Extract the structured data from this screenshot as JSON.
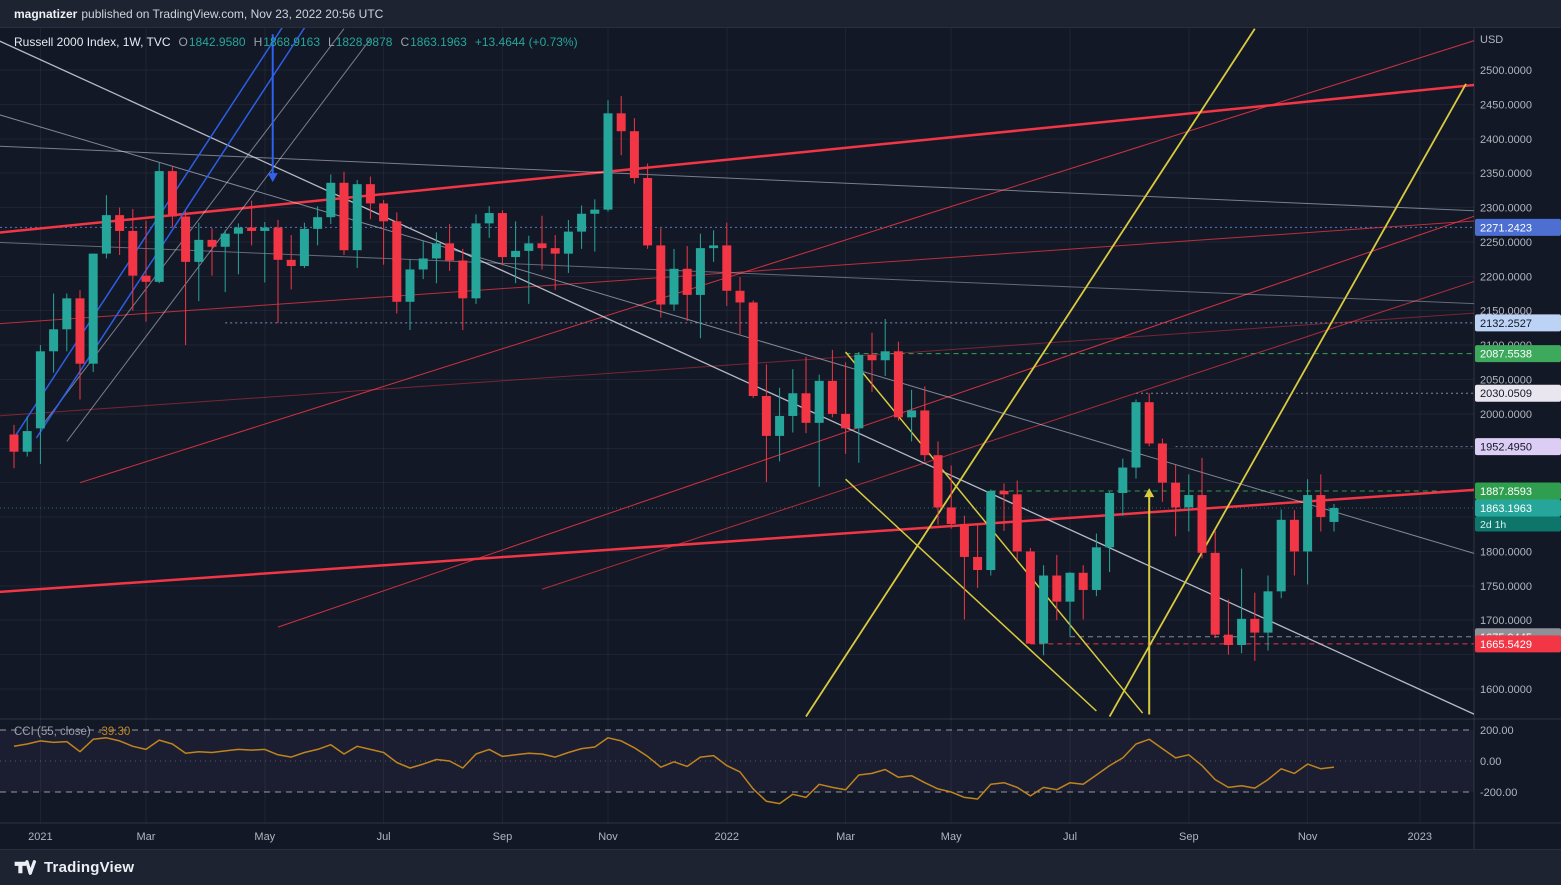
{
  "topbar": {
    "publisher": "magnatizer",
    "rest": "published on TradingView.com, Nov 23, 2022 20:56 UTC"
  },
  "legend": {
    "symbol": "Russell 2000 Index, 1W, TVC",
    "o_label": "O",
    "o": "1842.9580",
    "h_label": "H",
    "h": "1868.9163",
    "l_label": "L",
    "l": "1828.9878",
    "c_label": "C",
    "c": "1863.1963",
    "change": "+13.4644 (+0.73%)"
  },
  "footer": {
    "brand": "TradingView"
  },
  "colors": {
    "bg": "#131826",
    "bar": "#1d2331",
    "up": "#26a69a",
    "down": "#f23645",
    "cci_line": "#c0841f",
    "axis_text": "#b2b5be",
    "grid": "rgba(255,255,255,0.05)",
    "separator": "rgba(255,255,255,0.12)",
    "countdown_bg": "#0e756b",
    "yellow": "#d9cb3f",
    "blue": "#2e62f0",
    "white_line": "#dce3ef"
  },
  "chart_data": {
    "type": "candlestick",
    "symbol": "Russell 2000 Index",
    "interval": "1W",
    "exchange": "TVC",
    "currency": "USD",
    "start_week": "2020-12-21",
    "price_range_shown": [
      1560,
      2560
    ],
    "price_ticks": [
      2500,
      2450,
      2400,
      2350,
      2300,
      2250,
      2200,
      2150,
      2100,
      2050,
      2000,
      1800,
      1750,
      1700,
      1600
    ],
    "time_labels": [
      {
        "text": "2021",
        "index": 2
      },
      {
        "text": "Mar",
        "index": 10
      },
      {
        "text": "May",
        "index": 19
      },
      {
        "text": "Jul",
        "index": 28
      },
      {
        "text": "Sep",
        "index": 37
      },
      {
        "text": "Nov",
        "index": 45
      },
      {
        "text": "2022",
        "index": 54
      },
      {
        "text": "Mar",
        "index": 63
      },
      {
        "text": "May",
        "index": 71
      },
      {
        "text": "Jul",
        "index": 80
      },
      {
        "text": "Sep",
        "index": 89
      },
      {
        "text": "Nov",
        "index": 98
      },
      {
        "text": "2023",
        "index": 106.5
      }
    ],
    "ohlc": [
      [
        1970,
        1984,
        1921,
        1945
      ],
      [
        1945,
        1996,
        1938,
        1975
      ],
      [
        1979,
        2100,
        1927,
        2091
      ],
      [
        2091,
        2175,
        2060,
        2123
      ],
      [
        2123,
        2175,
        2091,
        2168
      ],
      [
        2168,
        2180,
        2021,
        2073
      ],
      [
        2073,
        2233,
        2061,
        2233
      ],
      [
        2233,
        2318,
        2226,
        2289
      ],
      [
        2289,
        2300,
        2231,
        2266
      ],
      [
        2266,
        2298,
        2150,
        2201
      ],
      [
        2201,
        2281,
        2134,
        2192
      ],
      [
        2192,
        2365,
        2190,
        2353
      ],
      [
        2353,
        2360,
        2271,
        2287
      ],
      [
        2287,
        2295,
        2100,
        2221
      ],
      [
        2221,
        2278,
        2164,
        2253
      ],
      [
        2253,
        2270,
        2201,
        2243
      ],
      [
        2243,
        2267,
        2177,
        2262
      ],
      [
        2262,
        2277,
        2203,
        2271
      ],
      [
        2271,
        2310,
        2245,
        2266
      ],
      [
        2266,
        2279,
        2191,
        2271
      ],
      [
        2271,
        2282,
        2132,
        2224
      ],
      [
        2224,
        2260,
        2181,
        2215
      ],
      [
        2215,
        2278,
        2212,
        2269
      ],
      [
        2269,
        2302,
        2245,
        2286
      ],
      [
        2286,
        2348,
        2276,
        2336
      ],
      [
        2336,
        2352,
        2231,
        2238
      ],
      [
        2238,
        2340,
        2212,
        2334
      ],
      [
        2334,
        2345,
        2283,
        2306
      ],
      [
        2306,
        2311,
        2217,
        2280
      ],
      [
        2280,
        2293,
        2146,
        2163
      ],
      [
        2163,
        2225,
        2122,
        2210
      ],
      [
        2210,
        2252,
        2196,
        2226
      ],
      [
        2226,
        2264,
        2190,
        2248
      ],
      [
        2248,
        2276,
        2208,
        2223
      ],
      [
        2223,
        2240,
        2122,
        2168
      ],
      [
        2168,
        2290,
        2160,
        2277
      ],
      [
        2277,
        2302,
        2256,
        2292
      ],
      [
        2292,
        2296,
        2216,
        2228
      ],
      [
        2228,
        2280,
        2190,
        2237
      ],
      [
        2237,
        2259,
        2160,
        2248
      ],
      [
        2248,
        2288,
        2210,
        2241
      ],
      [
        2241,
        2260,
        2180,
        2233
      ],
      [
        2233,
        2282,
        2205,
        2265
      ],
      [
        2265,
        2303,
        2240,
        2291
      ],
      [
        2291,
        2312,
        2236,
        2297
      ],
      [
        2297,
        2456,
        2294,
        2437
      ],
      [
        2437,
        2462,
        2376,
        2411
      ],
      [
        2411,
        2430,
        2335,
        2343
      ],
      [
        2343,
        2364,
        2240,
        2245
      ],
      [
        2245,
        2270,
        2140,
        2159
      ],
      [
        2159,
        2240,
        2150,
        2211
      ],
      [
        2211,
        2244,
        2135,
        2173
      ],
      [
        2173,
        2262,
        2110,
        2241
      ],
      [
        2241,
        2267,
        2221,
        2245
      ],
      [
        2245,
        2278,
        2157,
        2179
      ],
      [
        2179,
        2199,
        2116,
        2162
      ],
      [
        2162,
        2165,
        2023,
        2026
      ],
      [
        2026,
        2072,
        1901,
        1968
      ],
      [
        1968,
        2038,
        1931,
        1997
      ],
      [
        1997,
        2065,
        1973,
        2030
      ],
      [
        2030,
        2083,
        1972,
        1987
      ],
      [
        1987,
        2057,
        1894,
        2048
      ],
      [
        2048,
        2093,
        1995,
        2000
      ],
      [
        2000,
        2075,
        1942,
        1979
      ],
      [
        1979,
        2090,
        1929,
        2086
      ],
      [
        2086,
        2118,
        2032,
        2078
      ],
      [
        2078,
        2138,
        2055,
        2091
      ],
      [
        2091,
        2105,
        1990,
        1995
      ],
      [
        1995,
        2035,
        1960,
        2005
      ],
      [
        2005,
        2040,
        1931,
        1940
      ],
      [
        1940,
        1960,
        1839,
        1864
      ],
      [
        1864,
        1925,
        1833,
        1840
      ],
      [
        1840,
        1852,
        1701,
        1792
      ],
      [
        1792,
        1841,
        1747,
        1773
      ],
      [
        1773,
        1890,
        1765,
        1888
      ],
      [
        1888,
        1899,
        1830,
        1883
      ],
      [
        1883,
        1903,
        1788,
        1800
      ],
      [
        1800,
        1805,
        1665.54,
        1666
      ],
      [
        1666,
        1780,
        1649,
        1765
      ],
      [
        1765,
        1795,
        1700,
        1727
      ],
      [
        1727,
        1770,
        1675.94,
        1769
      ],
      [
        1769,
        1780,
        1701,
        1744
      ],
      [
        1744,
        1826,
        1735,
        1806
      ],
      [
        1806,
        1887,
        1770,
        1885
      ],
      [
        1885,
        1935,
        1852,
        1922
      ],
      [
        1922,
        2021,
        1906,
        2017
      ],
      [
        2017,
        2030.05,
        1953,
        1957
      ],
      [
        1957,
        1964,
        1872,
        1900
      ],
      [
        1900,
        1926,
        1822,
        1864
      ],
      [
        1864,
        1912,
        1829,
        1882
      ],
      [
        1882,
        1936,
        1790,
        1798
      ],
      [
        1798,
        1830,
        1674,
        1679
      ],
      [
        1679,
        1730,
        1650,
        1664
      ],
      [
        1664,
        1775,
        1652,
        1702
      ],
      [
        1702,
        1740,
        1641,
        1682
      ],
      [
        1682,
        1765,
        1656,
        1742
      ],
      [
        1742,
        1861,
        1732,
        1846
      ],
      [
        1846,
        1860,
        1765,
        1800
      ],
      [
        1800,
        1905,
        1752,
        1882
      ],
      [
        1882,
        1912,
        1829,
        1850
      ],
      [
        1842.958,
        1868.9163,
        1828.9878,
        1863.1963
      ]
    ],
    "last": {
      "price": 1863.1963,
      "value": "1863.1963",
      "countdown": "2d 1h"
    },
    "levels": [
      {
        "value": "2271.2423",
        "price": 2271.2423,
        "bg": "#4c6fd1",
        "fg": "#ffffff",
        "line_color": "rgba(110,143,240,0.8)",
        "line_dash": "2 3",
        "line_from": -2
      },
      {
        "value": "2132.2527",
        "price": 2132.2527,
        "bg": "#bcd3f5",
        "fg": "#131826",
        "line_color": "rgba(176,205,244,0.7)",
        "line_dash": "2 3",
        "line_from": 16
      },
      {
        "value": "2087.5538",
        "price": 2087.5538,
        "bg": "#3da95c",
        "fg": "#ffffff",
        "line_color": "#3da95c",
        "line_dash": "5 4",
        "line_from": 63
      },
      {
        "value": "2030.0509",
        "price": 2030.0509,
        "bg": "#e9e6f0",
        "fg": "#131826",
        "line_color": "rgba(222,216,236,0.6)",
        "line_dash": "2 3",
        "line_from": 85
      },
      {
        "value": "1952.4950",
        "price": 1952.495,
        "bg": "#dccdf4",
        "fg": "#131826",
        "line_color": "rgba(205,183,238,0.6)",
        "line_dash": "2 3",
        "line_from": 88
      },
      {
        "value": "1887.8593",
        "price": 1887.8593,
        "bg": "#2f9e4f",
        "fg": "#ffffff",
        "line_color": "#2f9e4f",
        "line_dash": "5 4",
        "line_from": 74
      },
      {
        "value": "1675.9445",
        "price": 1675.9445,
        "bg": "#8d9098",
        "fg": "#ffffff",
        "line_color": "#8d9098",
        "line_dash": "5 4",
        "line_from": 80
      },
      {
        "value": "1665.5429",
        "price": 1665.5429,
        "bg": "#f23645",
        "fg": "#ffffff",
        "line_color": "#f23645",
        "line_dash": "5 4",
        "line_from": 77
      }
    ],
    "trendlines": [
      {
        "name": "red-channel-upper-thick",
        "color": "#f23645",
        "width": 2.5,
        "opacity": 1,
        "p1": [
          -2,
          2262
        ],
        "p2": [
          111,
          2479
        ]
      },
      {
        "name": "red-channel-lower-thick",
        "color": "#f23645",
        "width": 2.5,
        "opacity": 1,
        "p1": [
          -2,
          1740
        ],
        "p2": [
          111,
          1890
        ]
      },
      {
        "name": "red-parallel-mid",
        "color": "#f23645",
        "width": 1,
        "opacity": 0.75,
        "p1": [
          -2,
          2130
        ],
        "p2": [
          111,
          2281
        ]
      },
      {
        "name": "red-parallel-low",
        "color": "#f23645",
        "width": 1,
        "opacity": 0.45,
        "p1": [
          -2,
          1996
        ],
        "p2": [
          111,
          2147
        ]
      },
      {
        "name": "red-fan-1",
        "color": "#f23645",
        "width": 1,
        "opacity": 0.85,
        "p1": [
          5,
          1900
        ],
        "p2": [
          111,
          2545
        ]
      },
      {
        "name": "red-fan-2",
        "color": "#f23645",
        "width": 1,
        "opacity": 0.85,
        "p1": [
          20,
          1690
        ],
        "p2": [
          111,
          2290
        ]
      },
      {
        "name": "red-fan-3",
        "color": "#f23645",
        "width": 1,
        "opacity": 0.7,
        "p1": [
          40,
          1745
        ],
        "p2": [
          111,
          2195
        ]
      },
      {
        "name": "white-downtrend-main",
        "color": "#dce3ef",
        "width": 1.3,
        "opacity": 0.8,
        "p1": [
          -2,
          2550
        ],
        "p2": [
          111,
          1560
        ]
      },
      {
        "name": "white-downtrend-2",
        "color": "#dce3ef",
        "width": 1,
        "opacity": 0.55,
        "p1": [
          -2,
          2440
        ],
        "p2": [
          111,
          1795
        ]
      },
      {
        "name": "white-channel-upper",
        "color": "#dce3ef",
        "width": 1,
        "opacity": 0.5,
        "p1": [
          -2,
          2390
        ],
        "p2": [
          111,
          2295
        ]
      },
      {
        "name": "white-channel-lower",
        "color": "#dce3ef",
        "width": 1,
        "opacity": 0.4,
        "p1": [
          -2,
          2250
        ],
        "p2": [
          111,
          2160
        ]
      },
      {
        "name": "gray-steep-1",
        "color": "#dce3ef",
        "width": 1,
        "opacity": 0.5,
        "p1": [
          2,
          1980
        ],
        "p2": [
          25,
          2560
        ]
      },
      {
        "name": "gray-steep-2",
        "color": "#dce3ef",
        "width": 1,
        "opacity": 0.5,
        "p1": [
          4,
          1960
        ],
        "p2": [
          27,
          2545
        ]
      },
      {
        "name": "blue-steep-1",
        "color": "#2e62f0",
        "width": 1.5,
        "opacity": 0.95,
        "p1": [
          0,
          1965
        ],
        "p2": [
          20.5,
          2567
        ]
      },
      {
        "name": "blue-steep-2",
        "color": "#2e62f0",
        "width": 1.5,
        "opacity": 0.95,
        "p1": [
          1.7,
          1965
        ],
        "p2": [
          22.2,
          2567
        ]
      },
      {
        "name": "yellow-uptrend-1",
        "color": "#d9cb3f",
        "width": 1.8,
        "opacity": 1,
        "p1": [
          60,
          1560
        ],
        "p2": [
          94,
          2560
        ]
      },
      {
        "name": "yellow-uptrend-2",
        "color": "#d9cb3f",
        "width": 1.8,
        "opacity": 1,
        "p1": [
          83,
          1560
        ],
        "p2": [
          110,
          2480
        ]
      },
      {
        "name": "yellow-wedge-upper",
        "color": "#d9cb3f",
        "width": 1.5,
        "opacity": 1,
        "p1": [
          63,
          2090
        ],
        "p2": [
          85.5,
          1565
        ]
      },
      {
        "name": "yellow-wedge-lower",
        "color": "#d9cb3f",
        "width": 1.5,
        "opacity": 1,
        "p1": [
          63,
          1905
        ],
        "p2": [
          82,
          1568
        ]
      }
    ],
    "arrows": [
      {
        "name": "down-arrow-annotation",
        "color": "#2e62f0",
        "index": 19.6,
        "from_price": 2552,
        "to_price": 2337,
        "head": "down"
      },
      {
        "name": "up-arrow-annotation",
        "color": "#d9cb3f",
        "index": 86,
        "from_price": 1563,
        "to_price": 1892,
        "head": "up"
      }
    ],
    "cci": {
      "title": "CCI (55, close)",
      "value_text": "-39.30",
      "period": 55,
      "source": "close",
      "bands": [
        200,
        -200
      ],
      "ticks": [
        200,
        0,
        -200
      ],
      "values": [
        95,
        110,
        130,
        120,
        125,
        60,
        140,
        150,
        130,
        95,
        75,
        135,
        110,
        50,
        60,
        55,
        65,
        75,
        70,
        75,
        40,
        25,
        55,
        75,
        105,
        45,
        95,
        75,
        55,
        -10,
        -45,
        -20,
        10,
        0,
        -45,
        45,
        75,
        30,
        40,
        50,
        45,
        25,
        55,
        80,
        90,
        150,
        130,
        85,
        30,
        -40,
        -5,
        -35,
        25,
        35,
        -30,
        -70,
        -180,
        -260,
        -275,
        -215,
        -235,
        -150,
        -170,
        -185,
        -90,
        -80,
        -55,
        -105,
        -95,
        -140,
        -180,
        -200,
        -235,
        -245,
        -150,
        -140,
        -170,
        -225,
        -170,
        -185,
        -140,
        -150,
        -90,
        -30,
        20,
        110,
        140,
        80,
        20,
        40,
        -30,
        -120,
        -170,
        -160,
        -175,
        -120,
        -50,
        -80,
        -20,
        -50,
        -39.3
      ]
    }
  }
}
